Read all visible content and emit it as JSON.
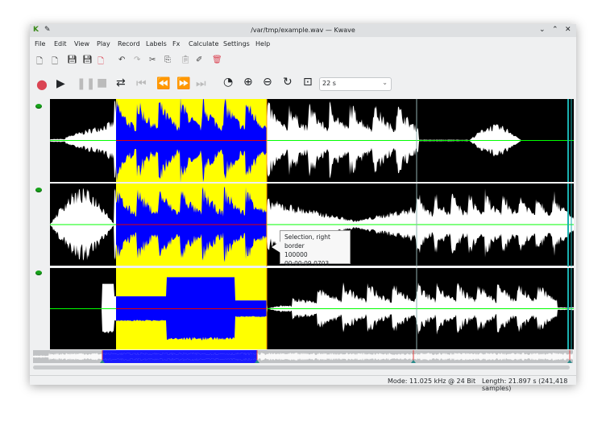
{
  "window": {
    "title": "/var/tmp/example.wav — Kwave",
    "app_icon": "kwave-logo",
    "pin_icon": "pin-icon"
  },
  "menu": [
    "File",
    "Edit",
    "View",
    "Play",
    "Record",
    "Labels",
    "Fx",
    "Calculate",
    "Settings",
    "Help"
  ],
  "toolbar": {
    "icons": [
      "new-file-icon",
      "open-file-icon",
      "save-icon",
      "save-as-icon",
      "close-file-icon",
      "undo-icon",
      "redo-icon",
      "cut-icon",
      "copy-icon",
      "paste-icon",
      "erase-icon",
      "delete-icon"
    ]
  },
  "transport": {
    "icons": [
      "record-icon",
      "play-icon",
      "pause-icon",
      "stop-icon",
      "loop-icon",
      "skip-start-icon",
      "rewind-icon",
      "forward-icon",
      "skip-end-icon",
      "zoom-selection-icon",
      "zoom-in-icon",
      "zoom-out-icon",
      "zoom-reset-icon",
      "zoom-all-icon"
    ],
    "zoom_value": "22 s"
  },
  "tooltip": {
    "line1": "Selection, right border",
    "line2": "100000",
    "line3": "00:00:09.0703"
  },
  "status": {
    "mode": "Mode: 11.025 kHz @ 24 Bit",
    "length": "Length: 21.897 s (241,418 samples)"
  },
  "colors": {
    "wave": "#ffffff",
    "selection_bg": "#ffff00",
    "selection_wave": "#0000ff",
    "center_line": "#00ff00",
    "background": "#000000",
    "record": "#da4453"
  }
}
